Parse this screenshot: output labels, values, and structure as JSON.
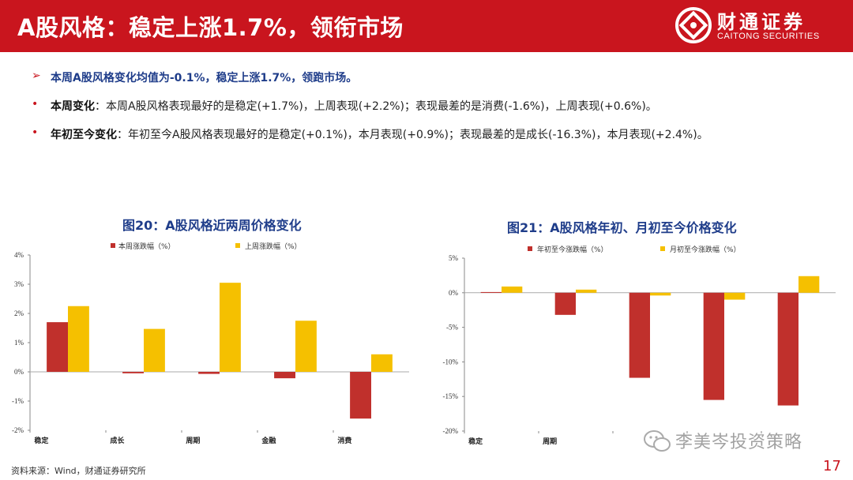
{
  "header": {
    "title": "A股风格：稳定上涨1.7%，领衔市场",
    "logo_cn": "财通证券",
    "logo_en": "CAITONG SECURITIES",
    "bg_color": "#c9151e"
  },
  "bullets": [
    {
      "marker": "➢",
      "text": "本周A股风格变化均值为-0.1%，稳定上涨1.7%，领跑市场。"
    },
    {
      "marker": "•",
      "keyword": "本周变化",
      "text": "：本周A股风格表现最好的是稳定(+1.7%)，上周表现(+2.2%)；表现最差的是消费(-1.6%)，上周表现(+0.6%)。"
    },
    {
      "marker": "•",
      "keyword": "年初至今变化",
      "text": "：年初至今A股风格表现最好的是稳定(+0.1%)，本月表现(+0.9%)；表现最差的是成长(-16.3%)，本月表现(+2.4%)。"
    }
  ],
  "chart_data": [
    {
      "type": "bar",
      "title": "图20：A股风格近两周价格变化",
      "categories": [
        "稳定",
        "成长",
        "周期",
        "金融",
        "消费"
      ],
      "series": [
        {
          "name": "本周涨跌幅（%）",
          "color": "#c0302c",
          "values": [
            1.7,
            -0.05,
            -0.07,
            -0.22,
            -1.6
          ]
        },
        {
          "name": "上周涨跌幅（%）",
          "color": "#f5c000",
          "values": [
            2.25,
            1.47,
            3.05,
            1.75,
            0.6
          ]
        }
      ],
      "yticks": [
        "-2%",
        "-1%",
        "0%",
        "1%",
        "2%",
        "3%",
        "4%"
      ],
      "ylim": [
        -2,
        4
      ],
      "legend": "top",
      "grid": false
    },
    {
      "type": "bar",
      "title": "图21：A股风格年初、月初至今价格变化",
      "categories": [
        "稳定",
        "周期",
        "",
        "",
        ""
      ],
      "series": [
        {
          "name": "年初至今涨跌幅（%）",
          "color": "#c0302c",
          "values": [
            0.1,
            -3.2,
            -12.3,
            -15.5,
            -16.3
          ]
        },
        {
          "name": "月初至今涨跌幅（%）",
          "color": "#f5c000",
          "values": [
            0.9,
            0.45,
            -0.4,
            -1.0,
            2.4
          ]
        }
      ],
      "yticks": [
        "-20%",
        "-15%",
        "-10%",
        "-5%",
        "0%",
        "5%"
      ],
      "ylim": [
        -20,
        5
      ],
      "legend": "top",
      "grid": false
    }
  ],
  "footer": {
    "source": "资料来源：Wind，财通证券研究所",
    "page": "17",
    "watermark": "李美岑投资策略"
  }
}
